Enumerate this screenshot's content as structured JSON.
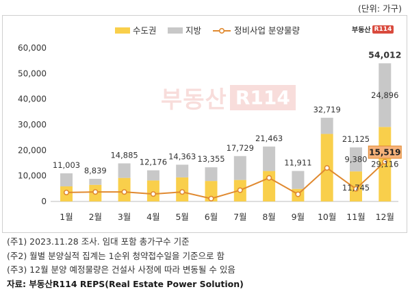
{
  "unit_label": "(단위: 가구)",
  "logo": {
    "text": "부동산",
    "badge": "R114"
  },
  "chart_data": {
    "type": "bar",
    "stacked": true,
    "categories": [
      "1월",
      "2월",
      "3월",
      "4월",
      "5월",
      "6월",
      "7월",
      "8월",
      "9월",
      "10월",
      "11월",
      "12월"
    ],
    "series": [
      {
        "name": "수도권",
        "values": [
          5900,
          6500,
          9200,
          8200,
          9400,
          8000,
          8400,
          11900,
          4900,
          26400,
          11745,
          29116
        ],
        "color": "#f9cf4b"
      },
      {
        "name": "지방",
        "values": [
          5103,
          2339,
          5685,
          3976,
          4963,
          5355,
          9329,
          9563,
          7011,
          6319,
          9380,
          24896
        ],
        "color": "#c8c8c8"
      }
    ],
    "line": {
      "name": "정비사업 분양물량",
      "values": [
        3500,
        3700,
        3700,
        2900,
        3700,
        1100,
        4400,
        9200,
        2800,
        13100,
        4900,
        15519
      ],
      "color": "#e0892f"
    },
    "totals": [
      11003,
      8839,
      14885,
      12176,
      14363,
      13355,
      17729,
      21463,
      11911,
      32719,
      21125,
      54012
    ],
    "total_labels": [
      "11,003",
      "8,839",
      "14,885",
      "12,176",
      "14,363",
      "13,355",
      "17,729",
      "21,463",
      "11,911",
      "32,719",
      "21,125",
      "54,012"
    ],
    "extra_labels": [
      {
        "month_index": 10,
        "series": "지방",
        "text": "9,380"
      },
      {
        "month_index": 10,
        "series": "수도권",
        "text": "11,745"
      },
      {
        "month_index": 11,
        "series": "지방",
        "text": "24,896"
      },
      {
        "month_index": 11,
        "series": "수도권",
        "text": "29,116"
      },
      {
        "month_index": 11,
        "series": "정비사업 분양물량",
        "text": "15,519"
      }
    ],
    "ylim": [
      0,
      60000
    ],
    "yticks": [
      0,
      10000,
      20000,
      30000,
      40000,
      50000,
      60000
    ],
    "ytick_labels": [
      "0",
      "10,000",
      "20,000",
      "30,000",
      "40,000",
      "50,000",
      "60,000"
    ],
    "grid": false,
    "legend_position": "top"
  },
  "notes": [
    "(주1) 2023.11.28 조사. 임대 포함 총가구수 기준",
    "(주2) 월별 분양실적 집계는 1순위 청약접수일을 기준으로 함",
    "(주3) 12월 분양 예정물량은 건설사 사정에 따라 변동될 수 있음"
  ],
  "source": "자료: 부동산R114 REPS(Real Estate Power Solution)"
}
